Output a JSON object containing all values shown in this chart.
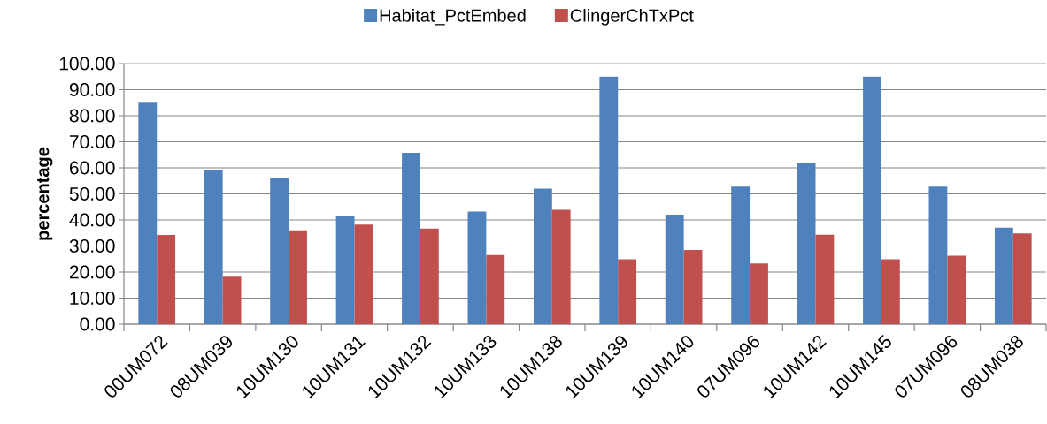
{
  "chart_data": {
    "type": "bar",
    "categories": [
      "00UM072",
      "08UM039",
      "10UM130",
      "10UM131",
      "10UM132",
      "10UM133",
      "10UM138",
      "10UM139",
      "10UM140",
      "07UM096",
      "10UM142",
      "10UM145",
      "07UM096",
      "08UM038"
    ],
    "series": [
      {
        "name": "Habitat_PctEmbed",
        "color": "#4f81bd",
        "values": [
          85,
          59.3,
          56,
          41.6,
          65.8,
          43.2,
          52,
          95,
          42,
          52.8,
          61.9,
          95,
          52.8,
          37
        ]
      },
      {
        "name": "ClingerChTxPct",
        "color": "#c0504d",
        "values": [
          34.2,
          18.2,
          36,
          38.2,
          36.7,
          26.5,
          43.9,
          24.9,
          28.5,
          23.3,
          34.3,
          24.9,
          26.3,
          34.8
        ]
      }
    ],
    "ylabel": "percentage",
    "ylim": [
      0,
      100
    ],
    "yticks": [
      {
        "value": 0,
        "label": "0.00"
      },
      {
        "value": 10,
        "label": "10.00"
      },
      {
        "value": 20,
        "label": "20.00"
      },
      {
        "value": 30,
        "label": "30.00"
      },
      {
        "value": 40,
        "label": "40.00"
      },
      {
        "value": 50,
        "label": "50.00"
      },
      {
        "value": 60,
        "label": "60.00"
      },
      {
        "value": 70,
        "label": "70.00"
      },
      {
        "value": 80,
        "label": "80.00"
      },
      {
        "value": 90,
        "label": "90.00"
      },
      {
        "value": 100,
        "label": "100.00"
      }
    ],
    "grid": "y",
    "legend": "top"
  }
}
